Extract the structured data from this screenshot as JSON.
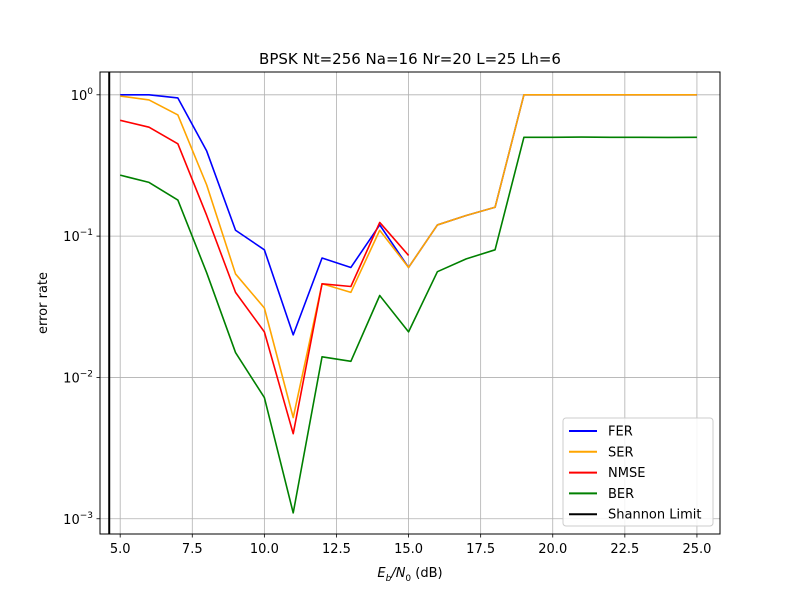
{
  "chart_data": {
    "type": "line",
    "title": "BPSK Nt=256 Na=16 Nr=20 L=25 Lh=6",
    "xlabel_main": "E",
    "xlabel_sub1": "b",
    "xlabel_mid": "/N",
    "xlabel_sub2": "0",
    "xlabel_unit": " (dB)",
    "ylabel": "error rate",
    "yscale": "log",
    "xlim": [
      4.3,
      25.8
    ],
    "ylim": [
      0.00078,
      1.45
    ],
    "xticks": [
      5.0,
      7.5,
      10.0,
      12.5,
      15.0,
      17.5,
      20.0,
      22.5,
      25.0
    ],
    "xtick_labels": [
      "5.0",
      "7.5",
      "10.0",
      "12.5",
      "15.0",
      "17.5",
      "20.0",
      "22.5",
      "25.0"
    ],
    "yticks": [
      0.001,
      0.01,
      0.1,
      1.0
    ],
    "ytick_labels": [
      {
        "base": "10",
        "exp": "−3"
      },
      {
        "base": "10",
        "exp": "−2"
      },
      {
        "base": "10",
        "exp": "−1"
      },
      {
        "base": "10",
        "exp": "0"
      }
    ],
    "grid": true,
    "legend_position": "lower-right",
    "shannon_limit_x": 4.62,
    "series": [
      {
        "name": "FER",
        "color": "#0000ff",
        "x": [
          5,
          6,
          7,
          8,
          9,
          10,
          11,
          12,
          13,
          14,
          15,
          16,
          17,
          18,
          19,
          20,
          21,
          22,
          23,
          24,
          25
        ],
        "y": [
          1.0,
          1.0,
          0.95,
          0.4,
          0.11,
          0.08,
          0.02,
          0.07,
          0.06,
          0.12,
          0.06,
          0.12,
          0.14,
          0.16,
          1.0,
          1.0,
          1.0,
          1.0,
          1.0,
          1.0,
          1.0
        ]
      },
      {
        "name": "SER",
        "color": "#ffa500",
        "x": [
          5,
          6,
          7,
          8,
          9,
          10,
          11,
          12,
          13,
          14,
          15,
          16,
          17,
          18,
          19,
          20,
          21,
          22,
          23,
          24,
          25
        ],
        "y": [
          0.98,
          0.92,
          0.72,
          0.23,
          0.054,
          0.031,
          0.0052,
          0.046,
          0.04,
          0.11,
          0.06,
          0.12,
          0.14,
          0.16,
          1.0,
          1.0,
          1.0,
          1.0,
          1.0,
          1.0,
          1.0
        ]
      },
      {
        "name": "NMSE",
        "color": "#ff0000",
        "x": [
          5,
          6,
          7,
          8,
          9,
          10,
          11,
          12,
          13,
          14,
          15
        ],
        "y": [
          0.66,
          0.59,
          0.45,
          0.14,
          0.04,
          0.021,
          0.004,
          0.046,
          0.044,
          0.125,
          0.073
        ]
      },
      {
        "name": "BER",
        "color": "#008000",
        "x": [
          5,
          6,
          7,
          8,
          9,
          10,
          11,
          12,
          13,
          14,
          15,
          16,
          17,
          18,
          19,
          20,
          21,
          22,
          23,
          24,
          25
        ],
        "y": [
          0.27,
          0.24,
          0.18,
          0.055,
          0.015,
          0.0072,
          0.0011,
          0.014,
          0.013,
          0.038,
          0.021,
          0.056,
          0.069,
          0.08,
          0.5,
          0.5,
          0.502,
          0.5,
          0.5,
          0.499,
          0.5
        ]
      }
    ],
    "legend_entries": [
      {
        "name": "FER",
        "color": "#0000ff"
      },
      {
        "name": "SER",
        "color": "#ffa500"
      },
      {
        "name": "NMSE",
        "color": "#ff0000"
      },
      {
        "name": "BER",
        "color": "#008000"
      },
      {
        "name": "Shannon Limit",
        "color": "#000000"
      }
    ]
  }
}
